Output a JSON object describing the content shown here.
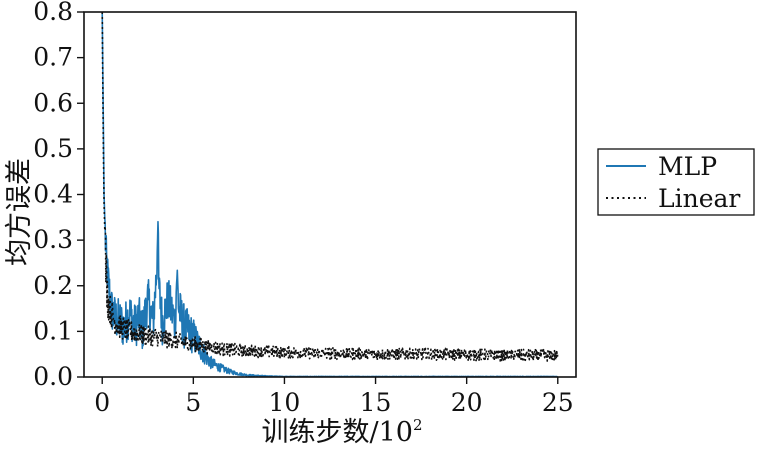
{
  "chart_data": {
    "type": "line",
    "xlabel": "训练步数/10",
    "xlabel_sup": "2",
    "ylabel": "均方误差",
    "xlim": [
      -1,
      26
    ],
    "ylim": [
      0,
      0.8
    ],
    "x_ticks": [
      0,
      5,
      10,
      15,
      20,
      25
    ],
    "x_tick_labels": [
      "0",
      "5",
      "10",
      "15",
      "20",
      "25"
    ],
    "y_ticks": [
      0.0,
      0.1,
      0.2,
      0.3,
      0.4,
      0.5,
      0.6,
      0.7,
      0.8
    ],
    "y_tick_labels": [
      "0.0",
      "0.1",
      "0.2",
      "0.3",
      "0.4",
      "0.5",
      "0.6",
      "0.7",
      "0.8"
    ],
    "grid": false,
    "legend_position": "outside-right",
    "series": [
      {
        "name": "MLP",
        "color": "#1f77b4",
        "style": "solid",
        "x": [
          0,
          0.05,
          0.1,
          0.2,
          0.3,
          0.5,
          0.7,
          1.0,
          1.2,
          1.5,
          1.8,
          2.0,
          2.2,
          2.5,
          2.8,
          3.0,
          3.05,
          3.1,
          3.3,
          3.6,
          4.0,
          4.1,
          4.2,
          4.5,
          5.0,
          5.3,
          5.6,
          6.0,
          6.5,
          7.0,
          7.5,
          8.0,
          9.0,
          10,
          12,
          15,
          20,
          25
        ],
        "y": [
          0.8,
          0.6,
          0.4,
          0.27,
          0.22,
          0.15,
          0.13,
          0.12,
          0.11,
          0.14,
          0.11,
          0.13,
          0.1,
          0.17,
          0.12,
          0.24,
          0.37,
          0.2,
          0.12,
          0.17,
          0.12,
          0.23,
          0.15,
          0.11,
          0.09,
          0.07,
          0.05,
          0.03,
          0.02,
          0.012,
          0.007,
          0.004,
          0.002,
          0.001,
          0.001,
          0.001,
          0.001,
          0.001
        ]
      },
      {
        "name": "Linear",
        "color": "#111111",
        "style": "dotted",
        "x": [
          0,
          0.05,
          0.1,
          0.2,
          0.3,
          0.5,
          0.7,
          1.0,
          1.5,
          2.0,
          2.5,
          3.0,
          4.0,
          5.0,
          6.0,
          7.0,
          8.0,
          10,
          12,
          15,
          18,
          20,
          22,
          25
        ],
        "y": [
          0.8,
          0.55,
          0.38,
          0.24,
          0.17,
          0.14,
          0.12,
          0.11,
          0.1,
          0.095,
          0.09,
          0.087,
          0.08,
          0.072,
          0.065,
          0.06,
          0.057,
          0.054,
          0.052,
          0.05,
          0.05,
          0.049,
          0.048,
          0.047
        ]
      }
    ]
  }
}
